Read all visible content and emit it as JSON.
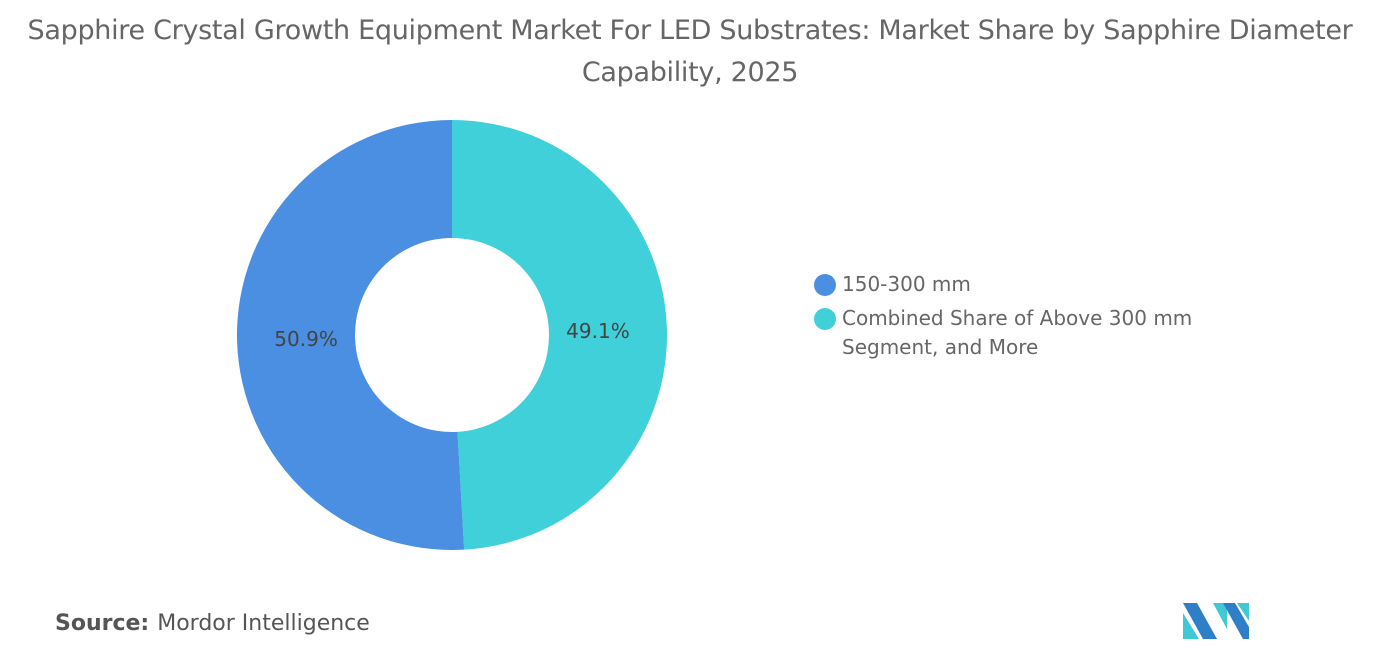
{
  "title": "Sapphire Crystal Growth Equipment Market For LED Substrates: Market Share by Sapphire Diameter Capability, 2025",
  "source_label": "Source:",
  "source_value": "Mordor Intelligence",
  "chart_data": {
    "type": "pie",
    "donut": true,
    "title": "Sapphire Crystal Growth Equipment Market For LED Substrates: Market Share by Sapphire Diameter Capability, 2025",
    "slices": [
      {
        "label": "Combined Share of Above 300 mm Segment, and More",
        "value": 49.1,
        "display": "49.1%",
        "color": "#40D0DA"
      },
      {
        "label": "150-300 mm",
        "value": 50.9,
        "display": "50.9%",
        "color": "#4A8FE2"
      }
    ],
    "legend": {
      "placement": "right",
      "items": [
        {
          "label": "150-300 mm",
          "color": "#4A8FE2"
        },
        {
          "label": "Combined Share of Above 300 mm Segment, and More",
          "color": "#40D0DA"
        }
      ]
    }
  }
}
